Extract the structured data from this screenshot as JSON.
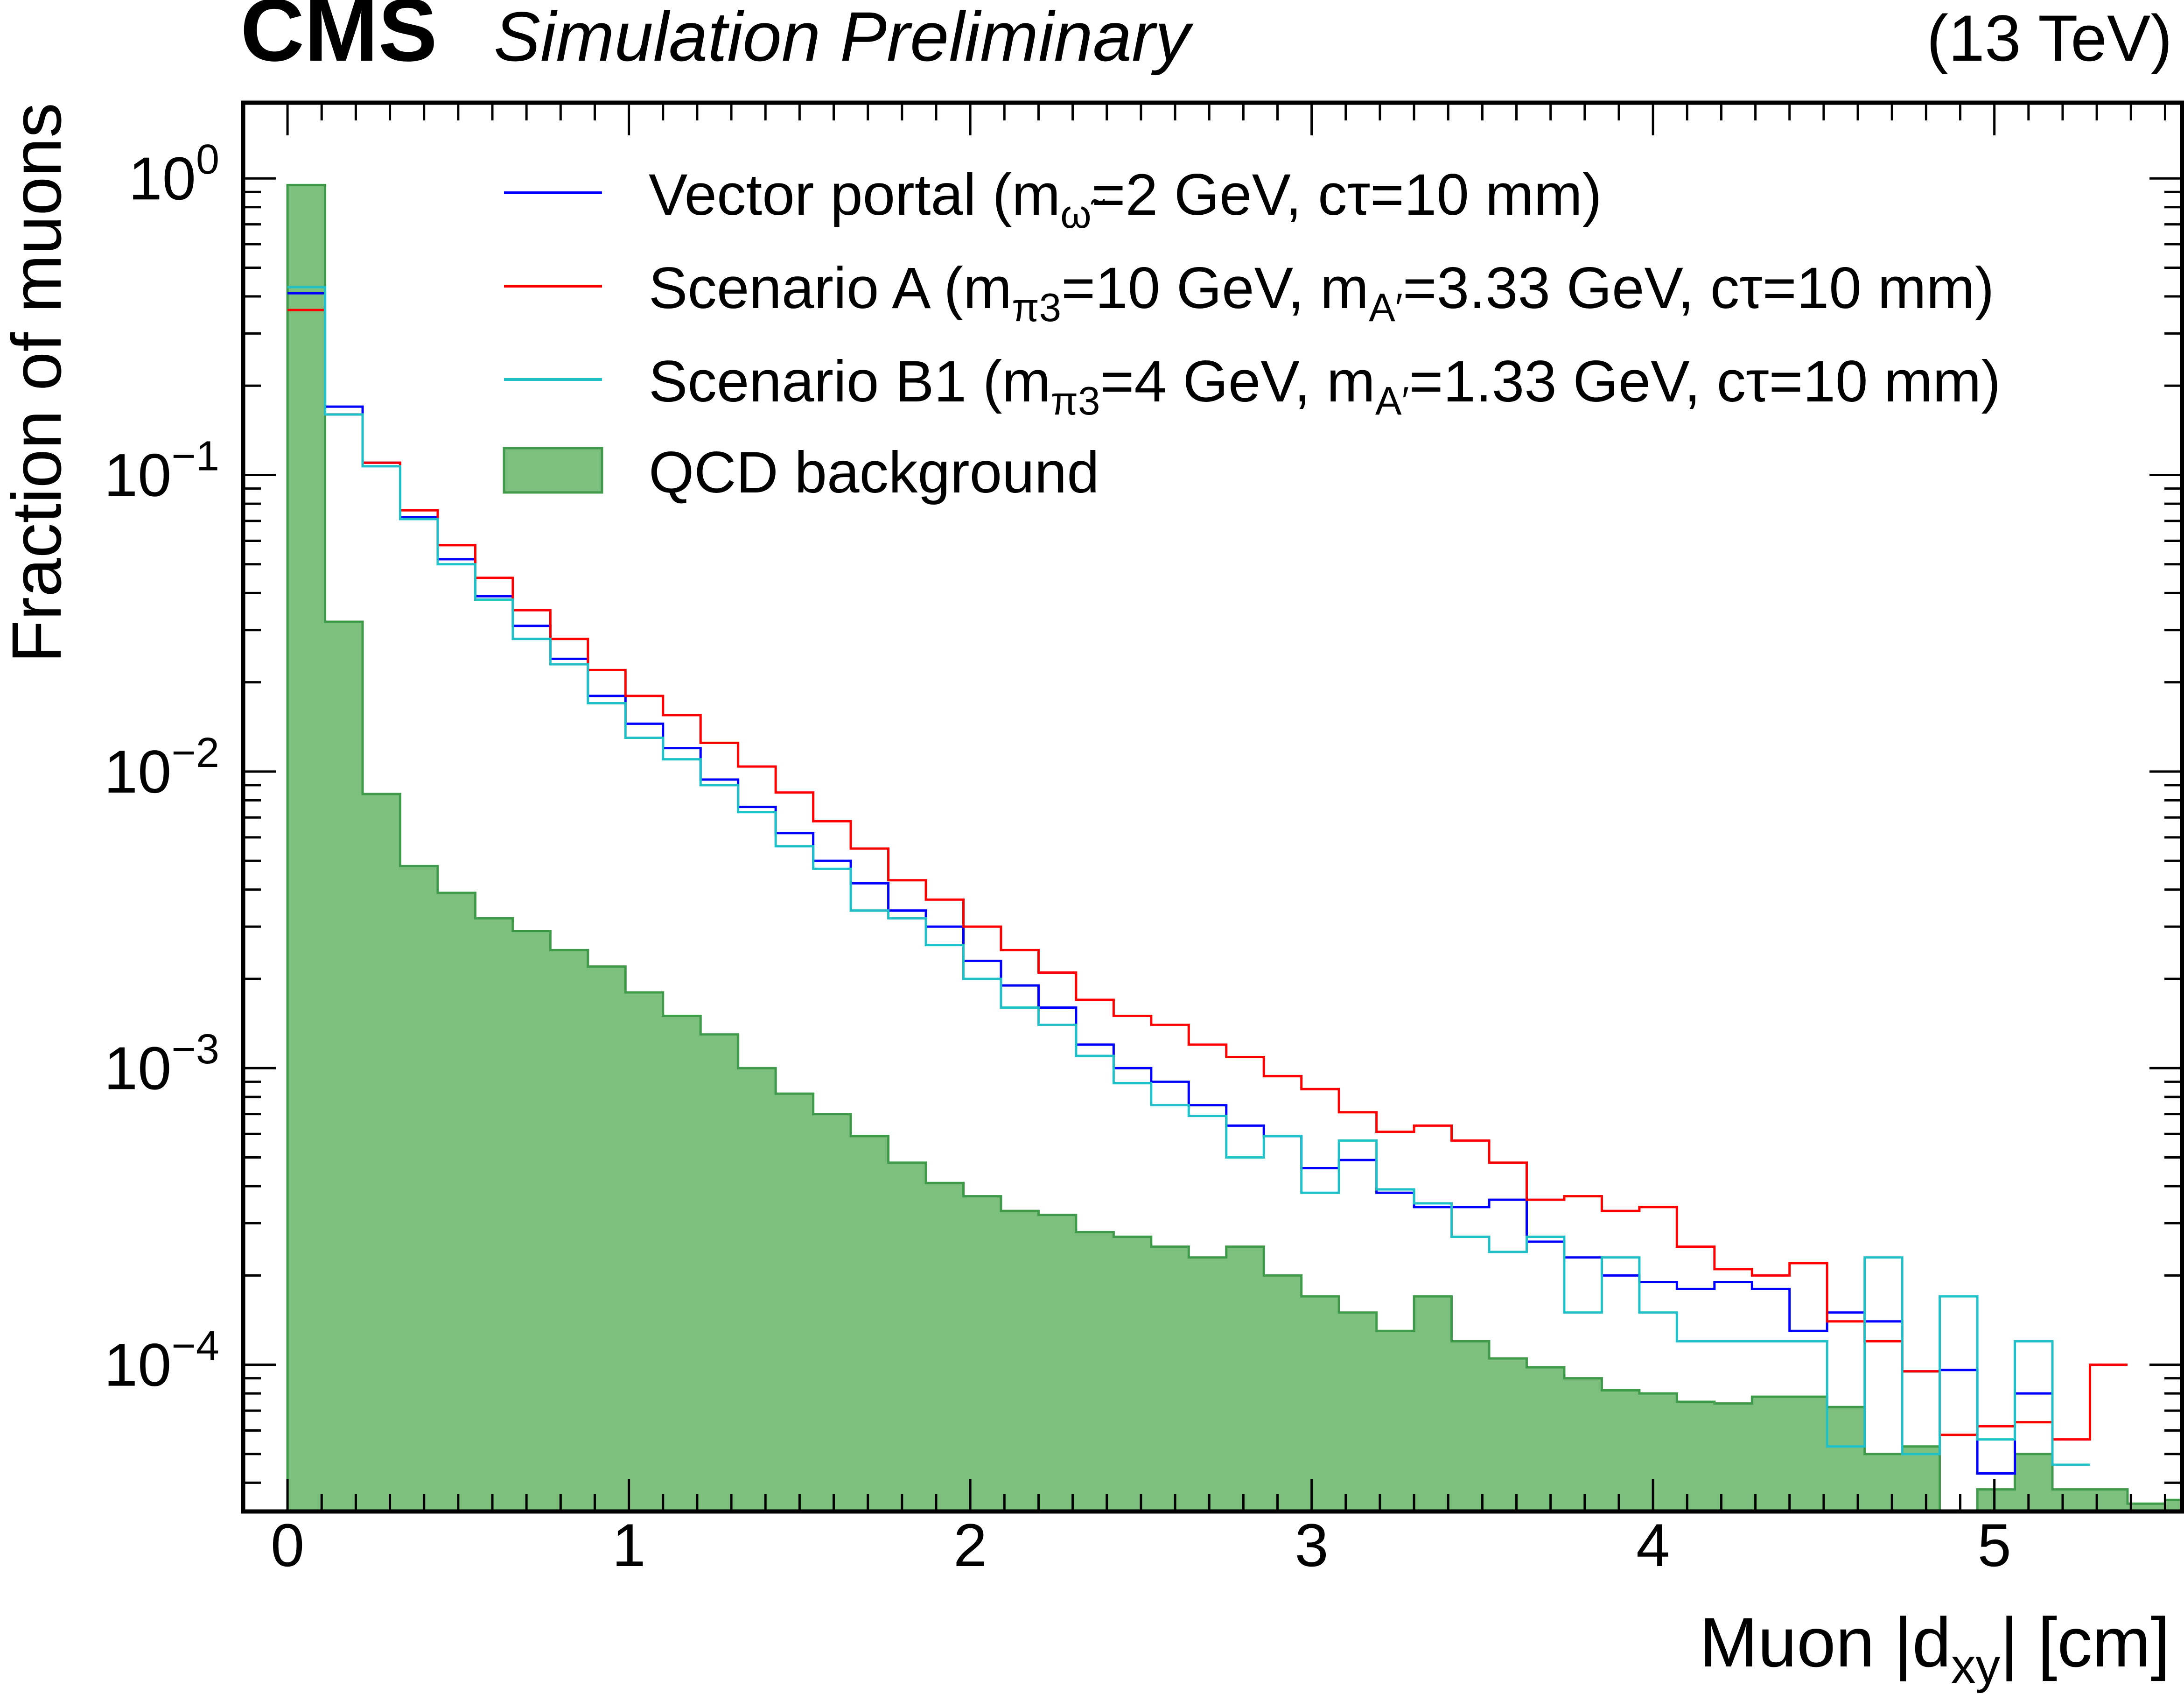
{
  "header": {
    "cms": "CMS",
    "simulation": "Simulation Preliminary",
    "energy": "(13 TeV)"
  },
  "chart_data": {
    "type": "histogram-step",
    "xlabel_main": "Muon |d",
    "xlabel_sub": "xy",
    "xlabel_end": "| [cm]",
    "ylabel": "Fraction of muons",
    "x_range": [
      -0.13,
      5.55
    ],
    "y_range": [
      3.2e-05,
      1.8
    ],
    "y_scale": "log",
    "x_ticks": [
      "0",
      "1",
      "2",
      "3",
      "4",
      "5"
    ],
    "y_ticks": [
      {
        "base": "10",
        "exp": "0",
        "value": 1
      },
      {
        "base": "10",
        "exp": "−1",
        "value": 0.1
      },
      {
        "base": "10",
        "exp": "−2",
        "value": 0.01
      },
      {
        "base": "10",
        "exp": "−3",
        "value": 0.001
      },
      {
        "base": "10",
        "exp": "−4",
        "value": 0.0001
      }
    ],
    "bin_width": 0.11,
    "bin_start": 0,
    "legend_position": "top-right",
    "series": [
      {
        "name": "Vector portal (m",
        "name_sub": "ω̃",
        "name_end": "=2 GeV, cτ=10 mm)",
        "color": "#0000ff",
        "kind": "step",
        "values": [
          0.41,
          0.17,
          0.11,
          0.072,
          0.052,
          0.039,
          0.031,
          0.024,
          0.018,
          0.0145,
          0.012,
          0.0094,
          0.0076,
          0.0062,
          0.005,
          0.0042,
          0.0034,
          0.003,
          0.0023,
          0.0019,
          0.0016,
          0.0012,
          0.001,
          0.0009,
          0.00075,
          0.00064,
          0.00059,
          0.00046,
          0.00049,
          0.00038,
          0.00034,
          0.00034,
          0.00036,
          0.00026,
          0.00023,
          0.0002,
          0.00019,
          0.00018,
          0.00019,
          0.00018,
          0.00013,
          0.00015,
          0.00014,
          9.5e-05,
          9.6e-05,
          4.3e-05,
          8e-05
        ]
      },
      {
        "name": "Scenario A (m",
        "name_sub": "π3",
        "name_end": "=10 GeV, m",
        "name_sub2": "A′",
        "name_end2": "=3.33 GeV, cτ=10 mm)",
        "color": "#ff0000",
        "kind": "step",
        "values": [
          0.36,
          0.16,
          0.11,
          0.076,
          0.058,
          0.045,
          0.035,
          0.028,
          0.022,
          0.018,
          0.0155,
          0.0125,
          0.0104,
          0.0085,
          0.0068,
          0.0055,
          0.0043,
          0.0037,
          0.003,
          0.0025,
          0.0021,
          0.0017,
          0.0015,
          0.0014,
          0.0012,
          0.00109,
          0.00094,
          0.00085,
          0.00071,
          0.00061,
          0.00064,
          0.00057,
          0.00048,
          0.00036,
          0.00037,
          0.00033,
          0.00034,
          0.00025,
          0.00021,
          0.0002,
          0.00022,
          0.00014,
          0.00012,
          9.5e-05,
          5.8e-05,
          6.2e-05,
          6.4e-05,
          5.6e-05,
          0.0001
        ]
      },
      {
        "name": "Scenario B1 (m",
        "name_sub": "π3",
        "name_end": "=4 GeV, m",
        "name_sub2": "A′",
        "name_end2": "=1.33 GeV, cτ=10 mm)",
        "color": "#20c0c8",
        "kind": "step",
        "values": [
          0.43,
          0.16,
          0.107,
          0.071,
          0.05,
          0.038,
          0.028,
          0.023,
          0.017,
          0.013,
          0.011,
          0.009,
          0.0073,
          0.0056,
          0.0047,
          0.0034,
          0.0032,
          0.0026,
          0.002,
          0.0016,
          0.0014,
          0.0011,
          0.00089,
          0.00075,
          0.00069,
          0.0005,
          0.00059,
          0.00038,
          0.00057,
          0.00039,
          0.00035,
          0.00027,
          0.00024,
          0.00027,
          0.00015,
          0.00023,
          0.00015,
          0.00012,
          0.00012,
          0.00012,
          0.00012,
          5.3e-05,
          0.00023,
          5e-05,
          0.00017,
          5.6e-05,
          0.00012,
          4.6e-05
        ]
      },
      {
        "name": "QCD background",
        "color": "#7dbf7d",
        "edge": "#3f9a4a",
        "kind": "filled",
        "values": [
          0.95,
          0.032,
          0.0084,
          0.0048,
          0.0039,
          0.0032,
          0.0029,
          0.0025,
          0.0022,
          0.0018,
          0.0015,
          0.0013,
          0.001,
          0.00082,
          0.0007,
          0.00059,
          0.00048,
          0.00041,
          0.00037,
          0.00033,
          0.00032,
          0.00028,
          0.00027,
          0.00025,
          0.00023,
          0.00025,
          0.0002,
          0.00017,
          0.00015,
          0.00013,
          0.00017,
          0.00012,
          0.000105,
          9.8e-05,
          9e-05,
          8.2e-05,
          8e-05,
          7.5e-05,
          7.4e-05,
          7.8e-05,
          7.8e-05,
          7.2e-05,
          5e-05,
          5.3e-05,
          3e-05,
          3.8e-05,
          5e-05,
          3.8e-05,
          3.8e-05,
          3.4e-05,
          3.5e-05,
          3.2e-05
        ]
      }
    ]
  }
}
